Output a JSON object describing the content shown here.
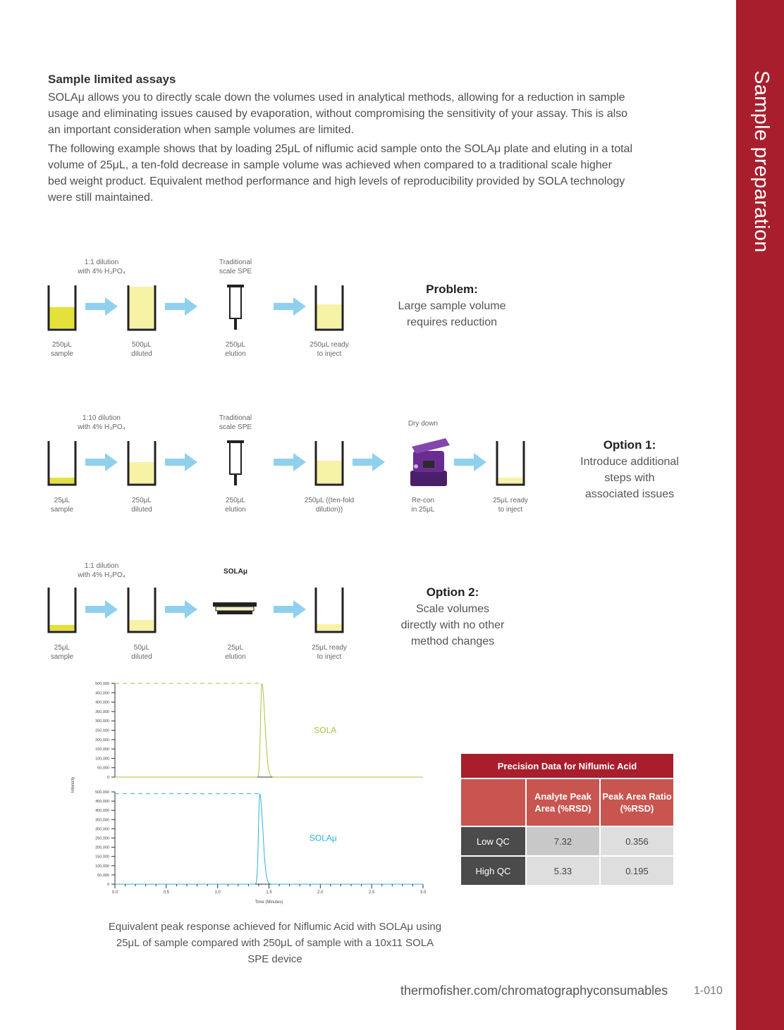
{
  "sidebar": {
    "title": "Sample preparation",
    "color": "#a81e2d"
  },
  "section": {
    "title": "Sample limited assays",
    "para1": "SOLAμ allows you to directly scale down the volumes used in analytical methods, allowing for a reduction in sample usage and eliminating issues caused by evaporation, without compromising the sensitivity of your assay. This is also an important consideration when sample volumes are limited.",
    "para2": "The following example shows that by loading 25μL of niflumic acid sample onto the SOLAμ plate and eluting in a total volume of 25μL, a ten-fold decrease in sample volume was achieved when compared to a traditional scale higher bed weight product. Equivalent method performance and high levels of reproducibility provided by SOLA technology were still maintained."
  },
  "workflow": {
    "problem": {
      "top_labels": [
        "1:1 dilution\nwith 4% H₃PO₄",
        "Traditional\nscale SPE"
      ],
      "bottom_labels": [
        "250μL\nsample",
        "500μL\ndiluted",
        "250μL\nelution",
        "250μL ready\nto inject"
      ],
      "callout_title": "Problem:",
      "callout_text": "Large sample volume\nrequires reduction"
    },
    "option1": {
      "top_labels": [
        "1:10 dilution\nwith 4% H₃PO₄",
        "Traditional\nscale SPE",
        "Dry down"
      ],
      "bottom_labels": [
        "25μL\nsample",
        "250μL\ndiluted",
        "250μL\nelution",
        "250μL ((ten-fold\ndilution))",
        "Re-con\nin 25μL",
        "25μL ready\nto inject"
      ],
      "callout_title": "Option 1:",
      "callout_text": "Introduce additional\nsteps with\nassociated issues"
    },
    "option2": {
      "top_labels": [
        "1:1 dilution\nwith 4% H₃PO₄",
        "SOLAμ"
      ],
      "bottom_labels": [
        "25μL\nsample",
        "50μL\ndiluted",
        "25μL\nelution",
        "25μL ready\nto inject"
      ],
      "callout_title": "Option 2:",
      "callout_text": "Scale volumes\ndirectly with no other\nmethod changes"
    },
    "colors": {
      "arrow": "#8fd0ef",
      "liquid_dark": "#e4e23a",
      "liquid_light": "#f6f2a6",
      "device": "#6a2c91"
    }
  },
  "chart_data": {
    "type": "line",
    "xlabel": "Time (Minutes)",
    "ylabel": "Intensity",
    "xlim": [
      0.0,
      3.0
    ],
    "x_ticks": [
      "0.0",
      "0.5",
      "1.0",
      "1.5",
      "2.0",
      "2.5",
      "3.0"
    ],
    "ylim": [
      0,
      500000
    ],
    "y_ticks": [
      "0",
      "50,000",
      "100,000",
      "150,000",
      "200,000",
      "250,000",
      "300,000",
      "350,000",
      "400,000",
      "450,000",
      "500,000"
    ],
    "series": [
      {
        "name": "SOLA",
        "color": "#a9c23f",
        "peak_x": 1.43,
        "peak_y": 500000
      },
      {
        "name": "SOLAμ",
        "color": "#27b6d6",
        "peak_x": 1.41,
        "peak_y": 490000
      }
    ],
    "caption": "Equivalent peak response achieved for Niflumic Acid with SOLAμ using 25μL of sample compared with 250μL of sample with a 10x11 SOLA SPE device"
  },
  "table": {
    "title": "Precision Data for Niflumic Acid",
    "headers": [
      "Analyte Peak Area (%RSD)",
      "Peak Area Ratio (%RSD)"
    ],
    "rows": [
      {
        "label": "Low QC",
        "values": [
          "7.32",
          "0.356"
        ]
      },
      {
        "label": "High QC",
        "values": [
          "5.33",
          "0.195"
        ]
      }
    ]
  },
  "footer": {
    "url": "thermofisher.com/chromatographyconsumables",
    "page": "1-010"
  }
}
